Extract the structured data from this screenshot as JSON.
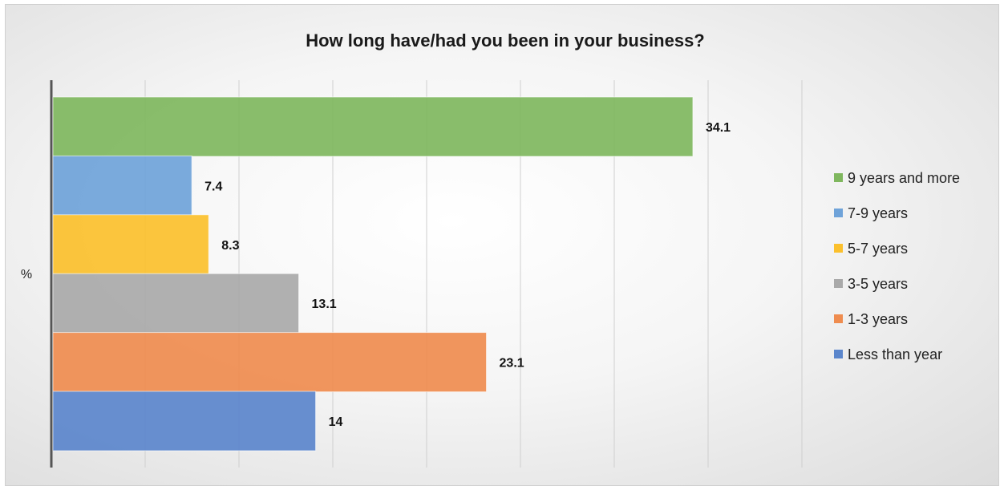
{
  "chart_data": {
    "type": "bar",
    "orientation": "horizontal",
    "title": "How long have/had you been in your business?",
    "xlabel": "",
    "ylabel": "%",
    "xlim": [
      0,
      40
    ],
    "grid": true,
    "legend_position": "right",
    "series": [
      {
        "name": "9 years and more",
        "value": 34.1,
        "label": "34.1",
        "color": "#7fb75e"
      },
      {
        "name": "7-9 years",
        "value": 7.4,
        "label": "7.4",
        "color": "#6fa3d9"
      },
      {
        "name": "5-7 years",
        "value": 8.3,
        "label": "8.3",
        "color": "#fbc02d"
      },
      {
        "name": "3-5 years",
        "value": 13.1,
        "label": "13.1",
        "color": "#a9a9a9"
      },
      {
        "name": "1-3 years",
        "value": 23.1,
        "label": "23.1",
        "color": "#ef8c4f"
      },
      {
        "name": "Less than year",
        "value": 14,
        "label": "14",
        "color": "#5b86cc"
      }
    ]
  }
}
